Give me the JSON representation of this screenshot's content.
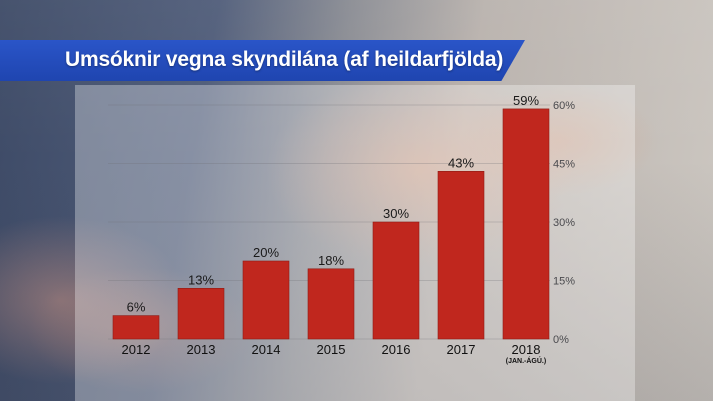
{
  "header": {
    "title": "Umsóknir vegna skyndilána (af heildarfjölda)"
  },
  "colors": {
    "banner": "#2249bd",
    "bar": "#c0271e"
  },
  "chart_data": {
    "type": "bar",
    "title": "Umsóknir vegna skyndilána (af heildarfjölda)",
    "categories": [
      "2012",
      "2013",
      "2014",
      "2015",
      "2016",
      "2017",
      "2018"
    ],
    "category_sublabels": [
      "",
      "",
      "",
      "",
      "",
      "",
      "(JAN.-ÁGÚ.)"
    ],
    "values": [
      6,
      13,
      20,
      18,
      30,
      43,
      59
    ],
    "data_labels": [
      "6%",
      "13%",
      "20%",
      "18%",
      "30%",
      "43%",
      "59%"
    ],
    "unit": "%",
    "ylim": [
      0,
      60
    ],
    "yticks": [
      0,
      15,
      30,
      45,
      60
    ],
    "ytick_labels": [
      "0%",
      "15%",
      "30%",
      "45%",
      "60%"
    ],
    "y_axis_side": "right",
    "grid": true,
    "legend": "none"
  }
}
